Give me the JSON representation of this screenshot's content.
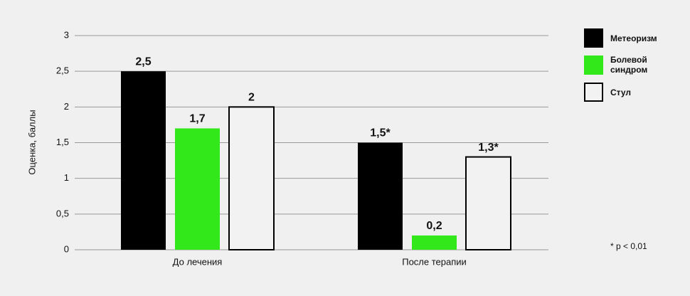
{
  "chart_data": {
    "type": "bar",
    "y_label": "Оценка, баллы",
    "categories": [
      "До лечения",
      "После терапии"
    ],
    "series": [
      {
        "name": "Метеоризм",
        "color": "#000000",
        "values": [
          2.5,
          1.5
        ],
        "value_labels": [
          "2,5",
          "1,5*"
        ]
      },
      {
        "name": "Болевой синдром",
        "color": "#33e81a",
        "values": [
          1.7,
          0.2
        ],
        "value_labels": [
          "1,7",
          "0,2"
        ]
      },
      {
        "name": "Стул",
        "color": "#f2f2f2",
        "edgecolor": "#000000",
        "values": [
          2,
          1.3
        ],
        "value_labels": [
          "2",
          "1,3*"
        ]
      }
    ],
    "ylim": [
      0,
      3
    ],
    "yticks": [
      0,
      {
        "value": 0.5,
        "label": "0,5"
      },
      1,
      {
        "value": 1.5,
        "label": "1,5"
      },
      2,
      {
        "value": 2.5,
        "label": "2,5"
      },
      3
    ],
    "grid": true,
    "legend": "upper right",
    "annotation": "* p < 0,01"
  }
}
